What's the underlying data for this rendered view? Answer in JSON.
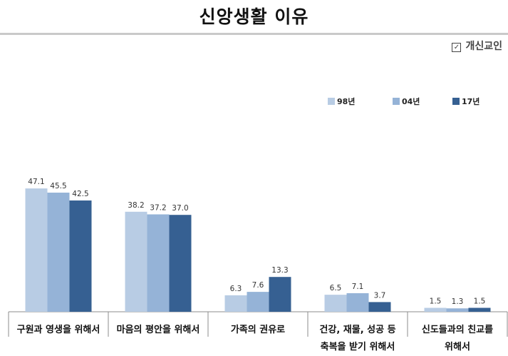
{
  "chart_title": "신앙생활 이유",
  "subtitle": {
    "icon": "checkbox-icon",
    "text": "개신교인"
  },
  "chart_data": {
    "type": "bar",
    "title": "신앙생활 이유",
    "categories": [
      [
        "구원과 영생을 위해서"
      ],
      [
        "마음의 평안을 위해서"
      ],
      [
        "가족의 권유로"
      ],
      [
        "건강, 재물, 성공 등",
        "축복을 받기 위해서"
      ],
      [
        "신도들과의 친교를",
        "위해서"
      ]
    ],
    "series": [
      {
        "name": "98년",
        "color": "#b8cce4",
        "values": [
          47.1,
          38.2,
          6.3,
          6.5,
          1.5
        ]
      },
      {
        "name": "04년",
        "color": "#95b3d7",
        "values": [
          45.5,
          37.2,
          7.6,
          7.1,
          1.3
        ]
      },
      {
        "name": "17년",
        "color": "#366092",
        "values": [
          42.5,
          37.0,
          13.3,
          3.7,
          1.5
        ]
      }
    ],
    "value_labels": [
      [
        "47.1",
        "38.2",
        "6.3",
        "6.5",
        "1.5"
      ],
      [
        "45.5",
        "37.2",
        "7.6",
        "7.1",
        "1.3"
      ],
      [
        "42.5",
        "37.0",
        "13.3",
        "3.7",
        "1.5"
      ]
    ],
    "ylim": [
      0,
      80
    ],
    "grid": false,
    "legend_position": "top-right"
  }
}
